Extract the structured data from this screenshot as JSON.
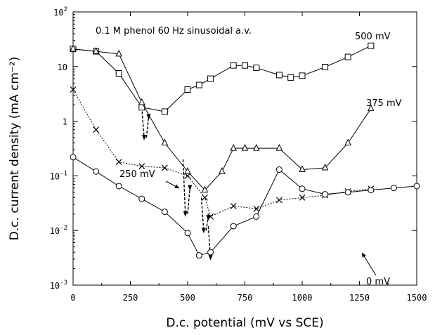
{
  "chart_data": {
    "type": "line",
    "annotation": "0.1 M phenol 60 Hz sinusoidal a.v.",
    "xlabel": "D.c. potential (mV vs SCE)",
    "ylabel": "D.c. current density (mA cm⁻²)",
    "xlim": [
      0,
      1500
    ],
    "ylim": [
      0.001,
      100
    ],
    "yscale": "log",
    "grid": false,
    "x_ticks": [
      {
        "value": 0,
        "label": "0"
      },
      {
        "value": 250,
        "label": "250"
      },
      {
        "value": 500,
        "label": "500"
      },
      {
        "value": 750,
        "label": "750"
      },
      {
        "value": 1000,
        "label": "1000"
      },
      {
        "value": 1250,
        "label": "1250"
      },
      {
        "value": 1500,
        "label": "1500"
      }
    ],
    "y_ticks": [
      {
        "value": 0.001,
        "mant": "10",
        "exp": "-3"
      },
      {
        "value": 0.01,
        "mant": "10",
        "exp": "-2"
      },
      {
        "value": 0.1,
        "mant": "10",
        "exp": "-1"
      },
      {
        "value": 1,
        "mant": "1",
        "exp": ""
      },
      {
        "value": 10,
        "mant": "10",
        "exp": ""
      },
      {
        "value": 100,
        "mant": "10",
        "exp": "2"
      }
    ],
    "series": [
      {
        "name": "500 mV",
        "marker": "square",
        "dash": "solid",
        "points": [
          [
            0,
            21
          ],
          [
            100,
            19
          ],
          [
            200,
            7.5
          ],
          [
            300,
            1.8
          ],
          [
            400,
            1.5
          ],
          [
            500,
            3.8
          ],
          [
            550,
            4.6
          ],
          [
            600,
            6
          ],
          [
            700,
            10.5
          ],
          [
            750,
            10.5
          ],
          [
            800,
            9.5
          ],
          [
            900,
            7
          ],
          [
            950,
            6.3
          ],
          [
            1000,
            6.8
          ],
          [
            1100,
            9.8
          ],
          [
            1200,
            15
          ],
          [
            1300,
            24
          ]
        ],
        "drop_lines": [
          [
            [
              300,
              1.8
            ],
            [
              310,
              0.5
            ]
          ],
          [
            [
              320,
              0.5
            ],
            [
              330,
              1.2
            ]
          ]
        ]
      },
      {
        "name": "375 mV",
        "marker": "triangle",
        "dash": "solid",
        "points": [
          [
            0,
            21
          ],
          [
            100,
            19
          ],
          [
            200,
            17
          ],
          [
            300,
            2.2
          ],
          [
            400,
            0.4
          ],
          [
            500,
            0.12
          ],
          [
            575,
            0.055
          ],
          [
            650,
            0.12
          ],
          [
            700,
            0.32
          ],
          [
            750,
            0.32
          ],
          [
            800,
            0.32
          ],
          [
            900,
            0.32
          ],
          [
            1000,
            0.13
          ],
          [
            1100,
            0.14
          ],
          [
            1200,
            0.4
          ],
          [
            1300,
            1.7
          ]
        ],
        "drop_lines": [
          [
            [
              480,
              0.2
            ],
            [
              490,
              0.02
            ]
          ],
          [
            [
              500,
              0.02
            ],
            [
              510,
              0.06
            ]
          ]
        ]
      },
      {
        "name": "250 mV",
        "marker": "cross",
        "dash": "dotted",
        "points": [
          [
            0,
            3.8
          ],
          [
            100,
            0.7
          ],
          [
            200,
            0.18
          ],
          [
            300,
            0.15
          ],
          [
            400,
            0.14
          ],
          [
            500,
            0.1
          ],
          [
            575,
            0.04
          ],
          [
            600,
            0.018
          ],
          [
            700,
            0.028
          ],
          [
            800,
            0.025
          ],
          [
            900,
            0.036
          ],
          [
            1000,
            0.04
          ],
          [
            1100,
            0.044
          ],
          [
            1200,
            0.052
          ],
          [
            1300,
            0.058
          ]
        ],
        "drop_lines": [
          [
            [
              560,
              0.04
            ],
            [
              570,
              0.01
            ]
          ],
          [
            [
              580,
              0.01
            ],
            [
              590,
              0.017
            ]
          ]
        ]
      },
      {
        "name": "0 mV",
        "marker": "circle",
        "dash": "solid",
        "points": [
          [
            0,
            0.22
          ],
          [
            100,
            0.12
          ],
          [
            200,
            0.065
          ],
          [
            300,
            0.038
          ],
          [
            400,
            0.022
          ],
          [
            500,
            0.009
          ],
          [
            550,
            0.0035
          ],
          [
            600,
            0.004
          ],
          [
            700,
            0.012
          ],
          [
            800,
            0.018
          ],
          [
            900,
            0.13
          ],
          [
            1000,
            0.058
          ],
          [
            1100,
            0.046
          ],
          [
            1200,
            0.05
          ],
          [
            1300,
            0.055
          ],
          [
            1400,
            0.06
          ],
          [
            1500,
            0.065
          ]
        ],
        "drop_lines": [
          [
            [
              590,
              0.012
            ],
            [
              600,
              0.0032
            ]
          ]
        ]
      }
    ],
    "labels": [
      {
        "text": "500 mV",
        "series": "500 mV"
      },
      {
        "text": "375 mV",
        "series": "375 mV"
      },
      {
        "text": "250 mV",
        "series": "250 mV"
      },
      {
        "text": "0 mV",
        "series": "0 mV"
      }
    ]
  }
}
